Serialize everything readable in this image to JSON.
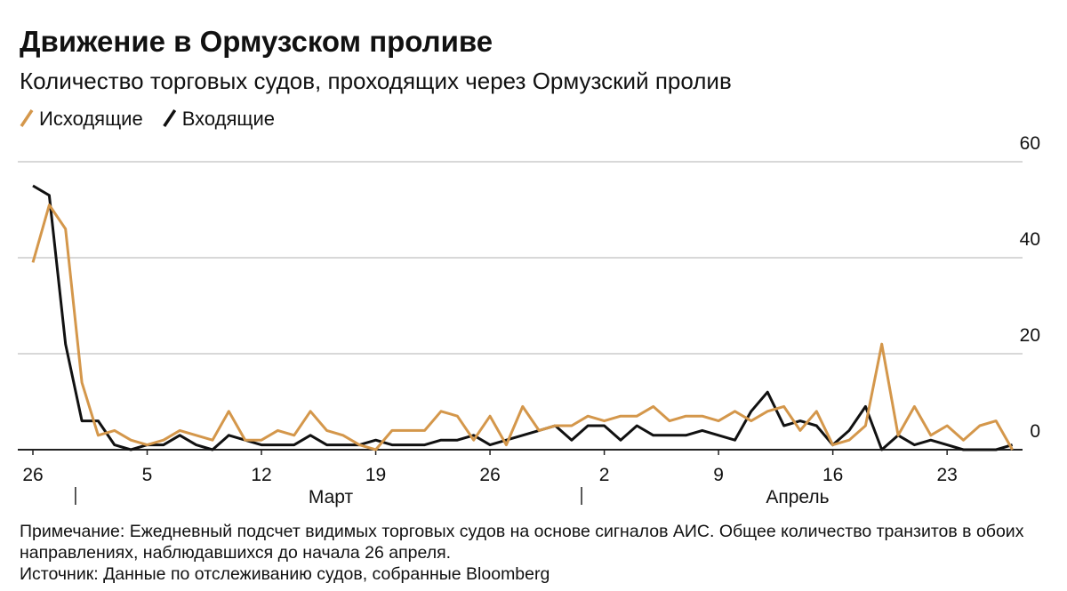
{
  "chart_data": {
    "type": "line",
    "title": "Движение в Ормузском проливе",
    "subtitle": "Количество торговых судов, проходящих через Ормузский пролив",
    "categories": [
      "26",
      null,
      null,
      null,
      null,
      null,
      null,
      "5",
      null,
      null,
      null,
      null,
      null,
      null,
      "12",
      null,
      null,
      null,
      null,
      null,
      null,
      "19",
      null,
      null,
      null,
      null,
      null,
      null,
      "26",
      null,
      null,
      null,
      null,
      null,
      null,
      "2",
      null,
      null,
      null,
      null,
      null,
      null,
      "9",
      null,
      null,
      null,
      null,
      null,
      null,
      "16",
      null,
      null,
      null,
      null,
      null,
      null,
      "23",
      null,
      null,
      null,
      null
    ],
    "x_groups": [
      {
        "label": "Март"
      },
      {
        "label": "Апрель"
      }
    ],
    "series": [
      {
        "name": "Исходящие",
        "color": "#d4974b",
        "values": [
          39,
          51,
          46,
          14,
          3,
          4,
          2,
          1,
          2,
          4,
          3,
          2,
          8,
          2,
          2,
          4,
          3,
          8,
          4,
          3,
          1,
          0,
          4,
          4,
          4,
          8,
          7,
          2,
          7,
          1,
          9,
          4,
          5,
          5,
          7,
          6,
          7,
          7,
          9,
          6,
          7,
          7,
          6,
          8,
          6,
          8,
          9,
          4,
          8,
          1,
          2,
          5,
          22,
          3,
          9,
          3,
          5,
          2,
          5,
          6,
          0
        ]
      },
      {
        "name": "Входящие",
        "color": "#111111",
        "values": [
          55,
          53,
          22,
          6,
          6,
          1,
          0,
          1,
          1,
          3,
          1,
          0,
          3,
          2,
          1,
          1,
          1,
          3,
          1,
          1,
          1,
          2,
          1,
          1,
          1,
          2,
          2,
          3,
          1,
          2,
          3,
          4,
          5,
          2,
          5,
          5,
          2,
          5,
          3,
          3,
          3,
          4,
          3,
          2,
          8,
          12,
          5,
          6,
          5,
          1,
          4,
          9,
          0,
          3,
          1,
          2,
          1,
          0,
          0,
          0,
          1
        ]
      }
    ],
    "ylim": [
      0,
      60
    ],
    "yticks": [
      0,
      20,
      40,
      60
    ],
    "grid": true,
    "note": "Примечание: Ежедневный подсчет видимых торговых судов на основе сигналов АИС. Общее количество транзитов в обоих направлениях, наблюдавшихся до начала 26 апреля.",
    "source": "Источник: Данные по отслеживанию судов, собранные Bloomberg"
  }
}
